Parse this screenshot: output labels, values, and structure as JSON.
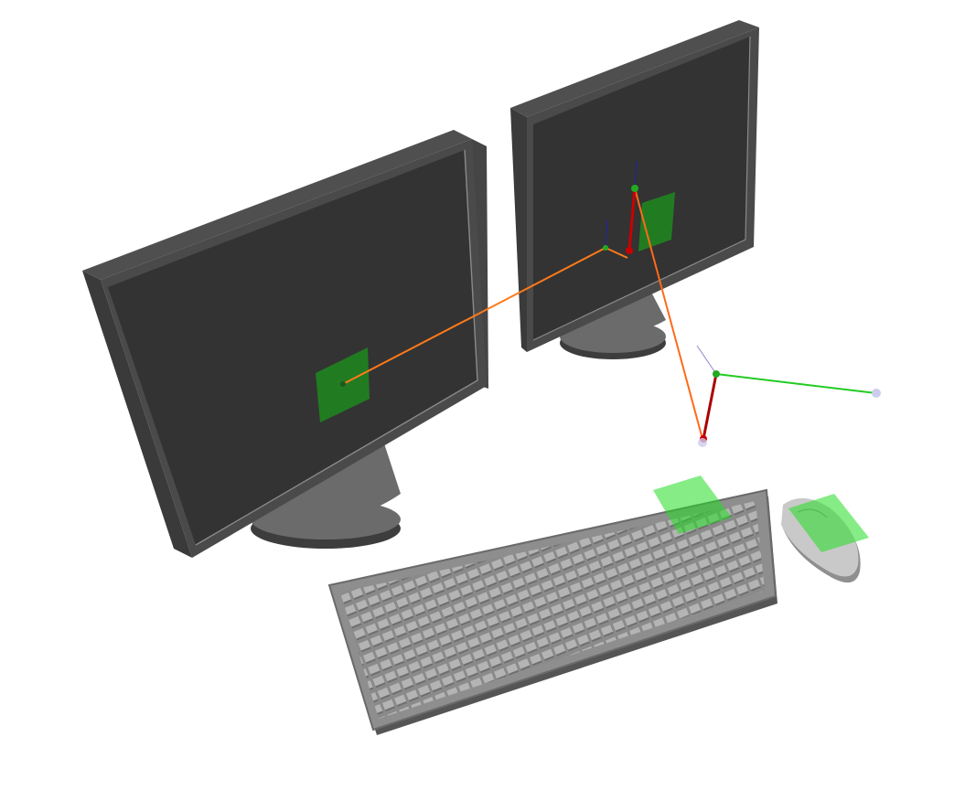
{
  "scene": {
    "background": "#ffffff",
    "objects": [
      "left-monitor",
      "right-monitor",
      "keyboard",
      "mouse"
    ],
    "highlight_color": "#22cc22",
    "ray_colors": {
      "gaze": "#ff7a1a",
      "pointer": "#22cc22",
      "axis_red": "#cc0000",
      "axis_blue": "#2222aa"
    },
    "colors": {
      "monitor_screen": "#333333",
      "monitor_frame": "#4a4a4a",
      "monitor_edge": "#5a5a5a",
      "stand": "#6b6b6b",
      "stand_dark": "#404040",
      "keyboard_body": "#8c8c8c",
      "keyboard_keys": "#a8a8a8",
      "mouse_body": "#c8c8c8"
    }
  }
}
